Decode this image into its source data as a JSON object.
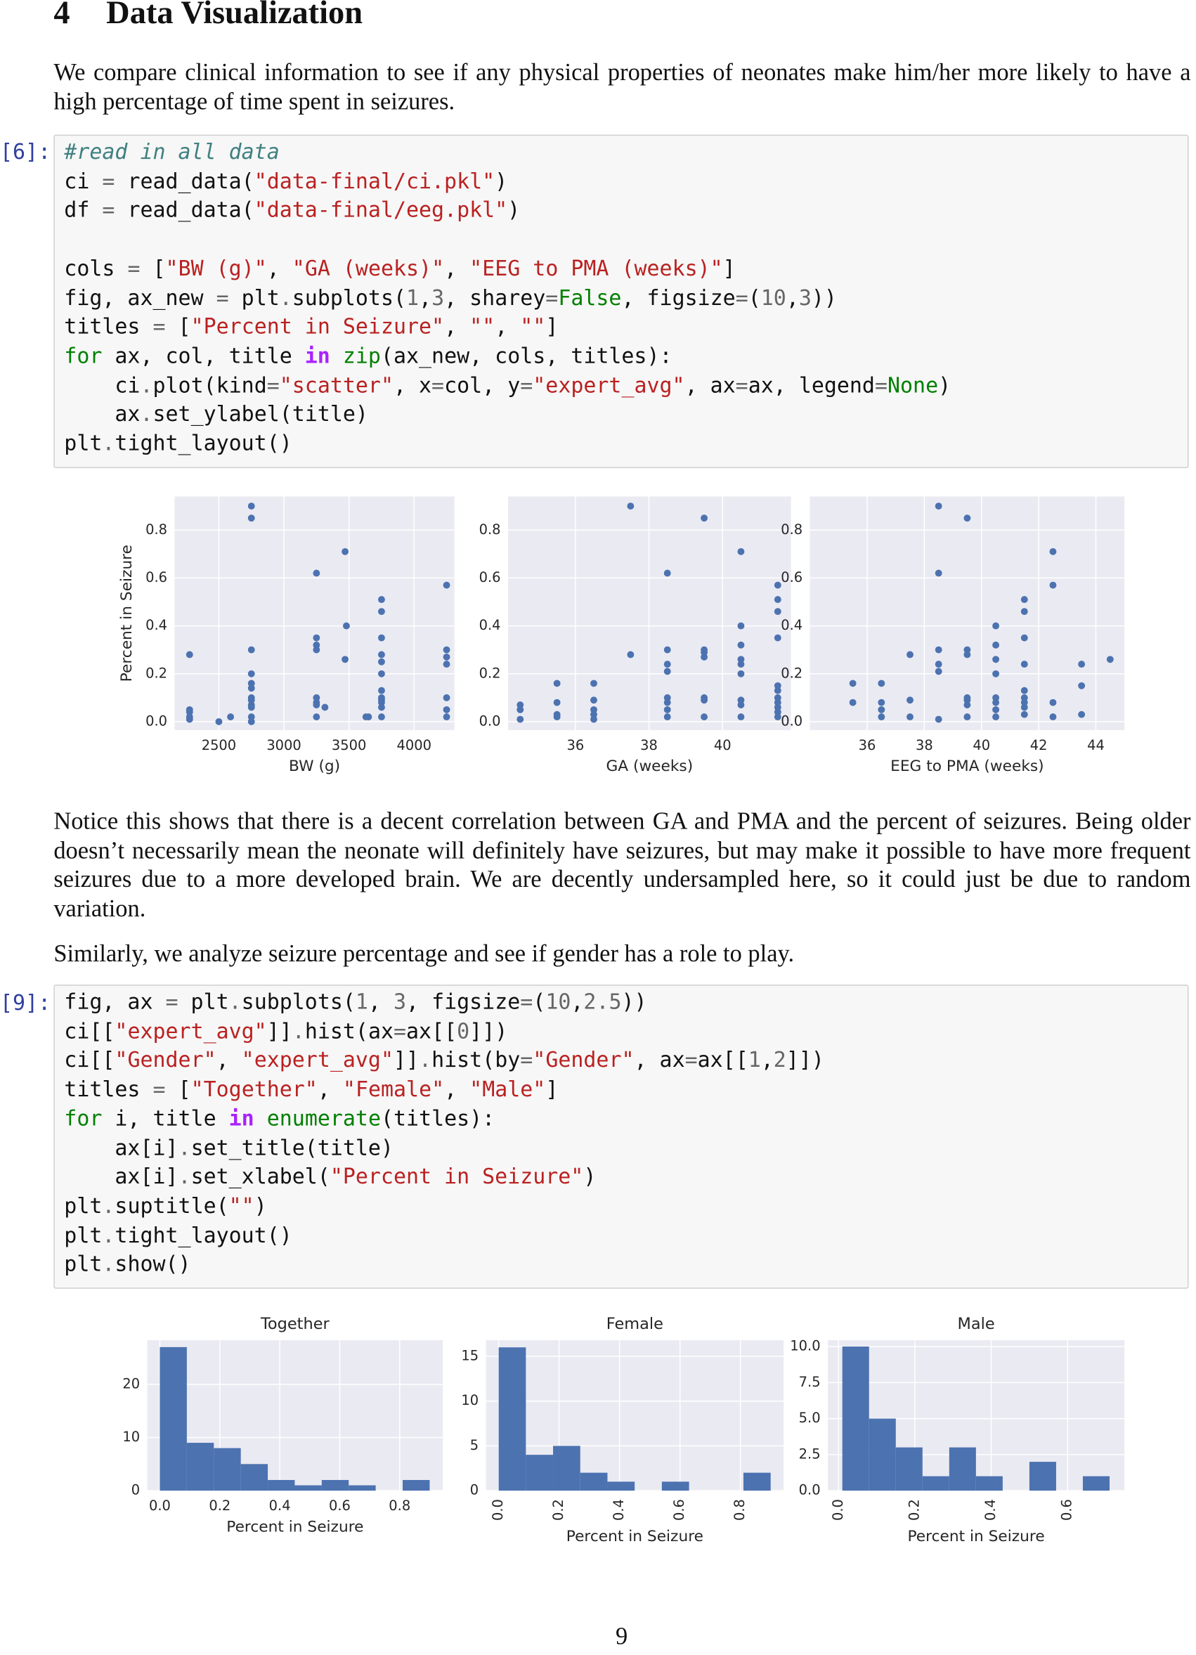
{
  "heading": {
    "number": "4",
    "title": "Data Visualization"
  },
  "paragraphs": [
    "We compare clinical information to see if any physical properties of neonates make him/her more likely to have a high percentage of time spent in seizures.",
    "Notice this shows that there is a decent correlation between GA and PMA and the percent of seizures. Being older doesn’t necessarily mean the neonate will definitely have seizures, but may make it possible to have more frequent seizures due to a more developed brain. We are decently undersampled here, so it could just be due to random variation.",
    "Similarly, we analyze seizure percentage and see if gender has a role to play."
  ],
  "cells": [
    {
      "prompt": "[6]:",
      "blocks": [
        [
          "#read in all data",
          "ci = read_data(\"data-final/ci.pkl\")",
          "df = read_data(\"data-final/eeg.pkl\")"
        ],
        [
          "cols = [\"BW (g)\", \"GA (weeks)\", \"EEG to PMA (weeks)\"]",
          "fig, ax_new = plt.subplots(1,3, sharey=False, figsize=(10,3))",
          "titles = [\"Percent in Seizure\", \"\", \"\"]",
          "for ax, col, title in zip(ax_new, cols, titles):",
          "    ci.plot(kind=\"scatter\", x=col, y=\"expert_avg\", ax=ax, legend=None)",
          "    ax.set_ylabel(title)",
          "plt.tight_layout()"
        ]
      ]
    },
    {
      "prompt": "[9]:",
      "blocks": [
        [
          "fig, ax = plt.subplots(1, 3, figsize=(10,2.5))",
          "ci[[\"expert_avg\"]].hist(ax=ax[[0]])",
          "ci[[\"Gender\", \"expert_avg\"]].hist(by=\"Gender\", ax=ax[[1,2]])",
          "titles = [\"Together\", \"Female\", \"Male\"]",
          "for i, title in enumerate(titles):",
          "    ax[i].set_title(title)",
          "    ax[i].set_xlabel(\"Percent in Seizure\")",
          "plt.suptitle(\"\")",
          "plt.tight_layout()",
          "plt.show()"
        ]
      ]
    }
  ],
  "page_number": "9",
  "chart_data": [
    {
      "type": "scatter",
      "xlabel": "BW (g)",
      "ylabel": "Percent in Seizure",
      "color": "#4c72b0",
      "grid": true,
      "x": [
        2275,
        2275,
        2275,
        2275,
        2275,
        2500,
        2590,
        2750,
        2750,
        2750,
        2750,
        2750,
        2750,
        2750,
        2750,
        2750,
        2750,
        2750,
        2750,
        3250,
        3250,
        3250,
        3250,
        3250,
        3250,
        3250,
        3250,
        3315,
        3470,
        3470,
        3480,
        3630,
        3650,
        3750,
        3750,
        3750,
        3750,
        3750,
        3750,
        3750,
        3750,
        3750,
        3750,
        3750,
        3750,
        4250,
        4250,
        4250,
        4250,
        4250,
        4250,
        4250
      ],
      "values": [
        0.28,
        0.05,
        0.04,
        0.02,
        0.01,
        0.0,
        0.02,
        0.9,
        0.85,
        0.3,
        0.2,
        0.16,
        0.14,
        0.1,
        0.09,
        0.07,
        0.06,
        0.02,
        0.0,
        0.62,
        0.35,
        0.32,
        0.3,
        0.1,
        0.08,
        0.07,
        0.02,
        0.06,
        0.71,
        0.26,
        0.4,
        0.02,
        0.02,
        0.51,
        0.46,
        0.35,
        0.28,
        0.25,
        0.2,
        0.13,
        0.1,
        0.09,
        0.08,
        0.06,
        0.02,
        0.57,
        0.3,
        0.27,
        0.24,
        0.1,
        0.05,
        0.02
      ],
      "xlim": [
        2160,
        4310
      ],
      "xticks": [
        2500,
        3000,
        3500,
        4000
      ],
      "ylim": [
        -0.035,
        0.94
      ],
      "yticks": [
        {
          "value": 0,
          "label": "0.0"
        },
        0.2,
        0.4,
        0.6,
        0.8
      ]
    },
    {
      "type": "scatter",
      "xlabel": "GA (weeks)",
      "color": "#4c72b0",
      "grid": true,
      "x": [
        34.5,
        34.5,
        34.5,
        35.5,
        35.5,
        35.5,
        35.5,
        36.5,
        36.5,
        36.5,
        36.5,
        36.5,
        37.5,
        37.5,
        38.5,
        38.5,
        38.5,
        38.5,
        38.5,
        38.5,
        38.5,
        38.5,
        39.5,
        39.5,
        39.5,
        39.5,
        39.5,
        39.5,
        39.5,
        40.5,
        40.5,
        40.5,
        40.5,
        40.5,
        40.5,
        40.5,
        40.5,
        40.5,
        41.5,
        41.5,
        41.5,
        41.5,
        41.5,
        41.5,
        41.5,
        41.5,
        41.5,
        41.5,
        41.5
      ],
      "values": [
        0.07,
        0.05,
        0.01,
        0.16,
        0.08,
        0.03,
        0.02,
        0.16,
        0.09,
        0.05,
        0.03,
        0.01,
        0.9,
        0.28,
        0.62,
        0.3,
        0.24,
        0.21,
        0.1,
        0.08,
        0.05,
        0.02,
        0.85,
        0.3,
        0.29,
        0.27,
        0.1,
        0.09,
        0.02,
        0.71,
        0.4,
        0.32,
        0.26,
        0.24,
        0.2,
        0.09,
        0.07,
        0.02,
        0.57,
        0.51,
        0.46,
        0.35,
        0.15,
        0.13,
        0.1,
        0.08,
        0.06,
        0.04,
        0.02
      ],
      "xlim": [
        34.17,
        41.86
      ],
      "xticks": [
        36,
        38,
        40
      ],
      "ylim": [
        -0.035,
        0.94
      ],
      "yticks": [
        {
          "value": 0,
          "label": "0.0"
        },
        0.2,
        0.4,
        0.6,
        0.8
      ]
    },
    {
      "type": "scatter",
      "xlabel": "EEG to PMA (weeks)",
      "color": "#4c72b0",
      "grid": true,
      "x": [
        35.5,
        35.5,
        36.5,
        36.5,
        36.5,
        36.5,
        37.5,
        37.5,
        37.5,
        38.5,
        38.5,
        38.5,
        38.5,
        38.5,
        38.5,
        39.5,
        39.5,
        39.5,
        39.5,
        39.5,
        39.5,
        39.5,
        40.5,
        40.5,
        40.5,
        40.5,
        40.5,
        40.5,
        40.5,
        40.5,
        41.5,
        41.5,
        41.5,
        41.5,
        41.5,
        41.5,
        41.5,
        41.5,
        41.5,
        42.5,
        42.5,
        42.5,
        42.5,
        43.5,
        43.5,
        43.5,
        44.5
      ],
      "values": [
        0.16,
        0.08,
        0.16,
        0.08,
        0.05,
        0.02,
        0.28,
        0.09,
        0.02,
        0.9,
        0.62,
        0.3,
        0.24,
        0.21,
        0.01,
        0.85,
        0.3,
        0.28,
        0.1,
        0.09,
        0.07,
        0.02,
        0.4,
        0.32,
        0.26,
        0.2,
        0.1,
        0.08,
        0.05,
        0.02,
        0.51,
        0.46,
        0.35,
        0.24,
        0.13,
        0.1,
        0.08,
        0.06,
        0.03,
        0.71,
        0.57,
        0.08,
        0.02,
        0.24,
        0.15,
        0.03,
        0.26
      ],
      "xlim": [
        34,
        45
      ],
      "xticks": [
        36,
        38,
        40,
        42,
        44
      ],
      "ylim": [
        -0.035,
        0.94
      ],
      "yticks": [
        {
          "value": 0,
          "label": "0.0"
        },
        0.2,
        0.4,
        0.6,
        0.8
      ]
    },
    {
      "type": "histogram",
      "title": "Together",
      "xlabel": "Percent in Seizure",
      "color": "#4c72b0",
      "grid": true,
      "bins": [
        0,
        0.09,
        0.18,
        0.27,
        0.36,
        0.45,
        0.54,
        0.63,
        0.72,
        0.81,
        0.9
      ],
      "values": [
        27,
        9,
        8,
        5,
        2,
        1,
        2,
        1,
        0,
        2
      ],
      "xlim": [
        -0.042,
        0.944
      ],
      "xticks": [
        {
          "value": 0,
          "label": "0.0"
        },
        0.2,
        0.4,
        0.6,
        0.8
      ],
      "ylim": [
        0,
        28.3
      ],
      "yticks": [
        0,
        10,
        20
      ]
    },
    {
      "type": "histogram",
      "title": "Female",
      "xlabel": "Percent in Seizure",
      "color": "#4c72b0",
      "grid": true,
      "xtick_rotation": 90,
      "bins": [
        0,
        0.09,
        0.18,
        0.27,
        0.36,
        0.45,
        0.54,
        0.63,
        0.72,
        0.81,
        0.9
      ],
      "values": [
        16,
        4,
        5,
        2,
        1,
        0,
        1,
        0,
        0,
        2
      ],
      "xlim": [
        -0.042,
        0.943
      ],
      "xticks": [
        {
          "value": 0,
          "label": "0.0"
        },
        0.2,
        0.4,
        0.6,
        0.8
      ],
      "ylim": [
        0,
        16.8
      ],
      "yticks": [
        0,
        5,
        10,
        15
      ]
    },
    {
      "type": "histogram",
      "title": "Male",
      "xlabel": "Percent in Seizure",
      "color": "#4c72b0",
      "grid": true,
      "xtick_rotation": 90,
      "bins": [
        0.01,
        0.08,
        0.15,
        0.22,
        0.29,
        0.36,
        0.43,
        0.5,
        0.57,
        0.64,
        0.71
      ],
      "values": [
        10,
        5,
        3,
        1,
        3,
        1,
        0,
        2,
        0,
        1
      ],
      "xlim": [
        -0.028,
        0.749
      ],
      "xticks": [
        {
          "value": 0,
          "label": "0.0"
        },
        0.2,
        0.4,
        0.6
      ],
      "ylim": [
        0,
        10.44
      ],
      "yticks": [
        {
          "value": 0,
          "label": "0.0"
        },
        2.5,
        {
          "value": 5,
          "label": "5.0"
        },
        7.5,
        {
          "value": 10,
          "label": "10.0"
        }
      ]
    }
  ]
}
